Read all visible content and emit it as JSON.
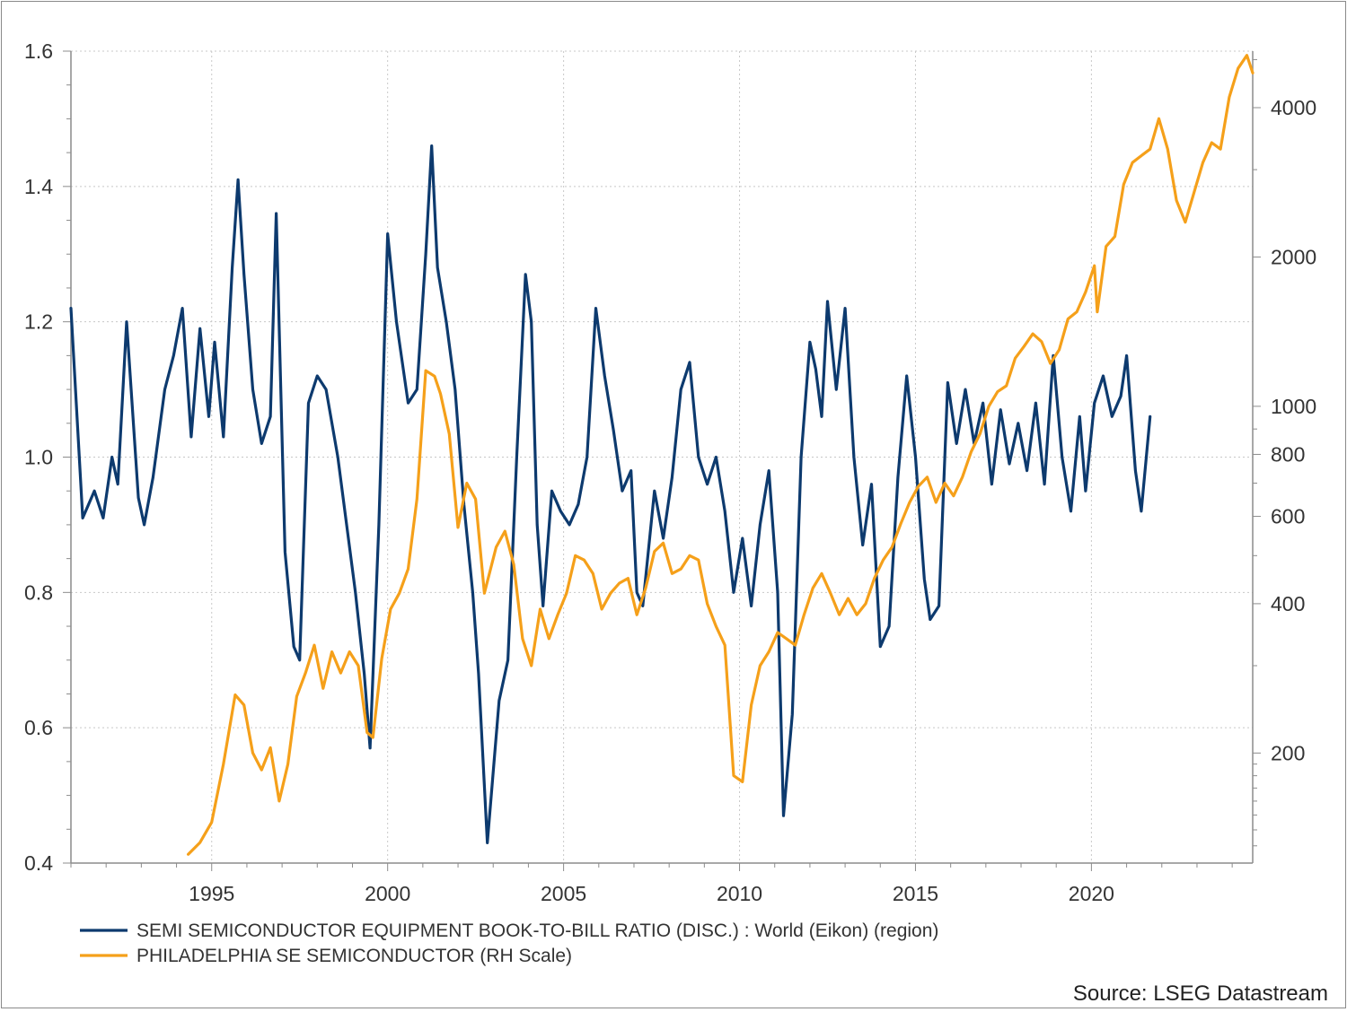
{
  "chart_data": {
    "type": "line",
    "x_axis": {
      "type": "date",
      "xlim": [
        "1991-01",
        "2024-08"
      ],
      "ticks": [
        1995,
        2000,
        2005,
        2010,
        2015,
        2020
      ],
      "tick_labels": [
        "1995",
        "2000",
        "2005",
        "2010",
        "2015",
        "2020"
      ]
    },
    "y_left": {
      "ylim": [
        0.4,
        1.6
      ],
      "ticks": [
        0.4,
        0.6,
        0.8,
        1.0,
        1.2,
        1.4,
        1.6
      ],
      "tick_labels": [
        "0.4",
        "0.6",
        "0.8",
        "1.0",
        "1.2",
        "1.4",
        "1.6"
      ]
    },
    "y_right": {
      "scale": "log",
      "ylim": [
        120,
        5200
      ],
      "ticks": [
        200,
        400,
        600,
        800,
        1000,
        2000,
        4000
      ],
      "tick_labels": [
        "200",
        "400",
        "600",
        "800",
        "1000",
        "2000",
        "4000"
      ]
    },
    "grid": true,
    "legend_position": "bottom-left",
    "source": "Source: LSEG Datastream",
    "series": [
      {
        "name": "SEMI SEMICONDUCTOR EQUIPMENT BOOK-TO-BILL RATIO (DISC.) : World (Eikon) (region)",
        "axis": "left",
        "color": "#0d3a6e",
        "points": [
          [
            "1991-01",
            1.22
          ],
          [
            "1991-05",
            0.91
          ],
          [
            "1991-09",
            0.95
          ],
          [
            "1991-12",
            0.91
          ],
          [
            "1992-03",
            1.0
          ],
          [
            "1992-05",
            0.96
          ],
          [
            "1992-08",
            1.2
          ],
          [
            "1992-12",
            0.94
          ],
          [
            "1993-02",
            0.9
          ],
          [
            "1993-05",
            0.97
          ],
          [
            "1993-09",
            1.1
          ],
          [
            "1993-12",
            1.15
          ],
          [
            "1994-03",
            1.22
          ],
          [
            "1994-06",
            1.03
          ],
          [
            "1994-09",
            1.19
          ],
          [
            "1994-12",
            1.06
          ],
          [
            "1995-02",
            1.17
          ],
          [
            "1995-05",
            1.03
          ],
          [
            "1995-08",
            1.28
          ],
          [
            "1995-10",
            1.41
          ],
          [
            "1995-12",
            1.27
          ],
          [
            "1996-03",
            1.1
          ],
          [
            "1996-06",
            1.02
          ],
          [
            "1996-09",
            1.06
          ],
          [
            "1996-11",
            1.36
          ],
          [
            "1997-02",
            0.86
          ],
          [
            "1997-05",
            0.72
          ],
          [
            "1997-07",
            0.7
          ],
          [
            "1997-10",
            1.08
          ],
          [
            "1998-01",
            1.12
          ],
          [
            "1998-04",
            1.1
          ],
          [
            "1998-08",
            1.0
          ],
          [
            "1998-11",
            0.9
          ],
          [
            "1999-02",
            0.8
          ],
          [
            "1999-05",
            0.68
          ],
          [
            "1999-07",
            0.57
          ],
          [
            "1999-10",
            0.9
          ],
          [
            "2000-01",
            1.33
          ],
          [
            "2000-04",
            1.2
          ],
          [
            "2000-08",
            1.08
          ],
          [
            "2000-11",
            1.1
          ],
          [
            "2001-02",
            1.3
          ],
          [
            "2001-04",
            1.46
          ],
          [
            "2001-06",
            1.28
          ],
          [
            "2001-09",
            1.2
          ],
          [
            "2001-12",
            1.1
          ],
          [
            "2002-03",
            0.93
          ],
          [
            "2002-06",
            0.8
          ],
          [
            "2002-08",
            0.68
          ],
          [
            "2002-11",
            0.43
          ],
          [
            "2003-03",
            0.64
          ],
          [
            "2003-06",
            0.7
          ],
          [
            "2003-09",
            1.0
          ],
          [
            "2003-12",
            1.27
          ],
          [
            "2004-02",
            1.2
          ],
          [
            "2004-04",
            0.9
          ],
          [
            "2004-06",
            0.78
          ],
          [
            "2004-09",
            0.95
          ],
          [
            "2004-12",
            0.92
          ],
          [
            "2005-03",
            0.9
          ],
          [
            "2005-06",
            0.93
          ],
          [
            "2005-09",
            1.0
          ],
          [
            "2005-12",
            1.22
          ],
          [
            "2006-03",
            1.12
          ],
          [
            "2006-06",
            1.04
          ],
          [
            "2006-09",
            0.95
          ],
          [
            "2006-12",
            0.98
          ],
          [
            "2007-02",
            0.8
          ],
          [
            "2007-04",
            0.78
          ],
          [
            "2007-08",
            0.95
          ],
          [
            "2007-11",
            0.88
          ],
          [
            "2008-02",
            0.97
          ],
          [
            "2008-05",
            1.1
          ],
          [
            "2008-08",
            1.14
          ],
          [
            "2008-11",
            1.0
          ],
          [
            "2009-02",
            0.96
          ],
          [
            "2009-05",
            1.0
          ],
          [
            "2009-08",
            0.92
          ],
          [
            "2009-11",
            0.8
          ],
          [
            "2010-02",
            0.88
          ],
          [
            "2010-05",
            0.78
          ],
          [
            "2010-08",
            0.9
          ],
          [
            "2010-11",
            0.98
          ],
          [
            "2011-02",
            0.8
          ],
          [
            "2011-04",
            0.47
          ],
          [
            "2011-07",
            0.62
          ],
          [
            "2011-10",
            1.0
          ],
          [
            "2012-01",
            1.17
          ],
          [
            "2012-03",
            1.13
          ],
          [
            "2012-05",
            1.06
          ],
          [
            "2012-07",
            1.23
          ],
          [
            "2012-10",
            1.1
          ],
          [
            "2013-01",
            1.22
          ],
          [
            "2013-04",
            1.0
          ],
          [
            "2013-07",
            0.87
          ],
          [
            "2013-10",
            0.96
          ],
          [
            "2014-01",
            0.72
          ],
          [
            "2014-04",
            0.75
          ],
          [
            "2014-07",
            0.97
          ],
          [
            "2014-10",
            1.12
          ],
          [
            "2015-01",
            1.0
          ],
          [
            "2015-04",
            0.82
          ],
          [
            "2015-06",
            0.76
          ],
          [
            "2015-09",
            0.78
          ],
          [
            "2015-12",
            1.11
          ],
          [
            "2016-03",
            1.02
          ],
          [
            "2016-06",
            1.1
          ],
          [
            "2016-09",
            1.02
          ],
          [
            "2016-12",
            1.08
          ],
          [
            "2017-03",
            0.96
          ],
          [
            "2017-06",
            1.07
          ],
          [
            "2017-09",
            0.99
          ],
          [
            "2017-12",
            1.05
          ],
          [
            "2018-03",
            0.98
          ],
          [
            "2018-06",
            1.08
          ],
          [
            "2018-09",
            0.96
          ],
          [
            "2018-12",
            1.15
          ],
          [
            "2019-03",
            1.0
          ],
          [
            "2019-06",
            0.92
          ],
          [
            "2019-09",
            1.06
          ],
          [
            "2019-11",
            0.95
          ],
          [
            "2020-02",
            1.08
          ],
          [
            "2020-05",
            1.12
          ],
          [
            "2020-08",
            1.06
          ],
          [
            "2020-11",
            1.09
          ],
          [
            "2021-01",
            1.15
          ],
          [
            "2021-04",
            0.98
          ],
          [
            "2021-06",
            0.92
          ],
          [
            "2021-09",
            1.06
          ]
        ]
      },
      {
        "name": "PHILADELPHIA SE SEMICONDUCTOR (RH Scale)",
        "axis": "right",
        "color": "#f5a01a",
        "points": [
          [
            "1994-05",
            125
          ],
          [
            "1994-09",
            132
          ],
          [
            "1995-01",
            145
          ],
          [
            "1995-05",
            190
          ],
          [
            "1995-09",
            262
          ],
          [
            "1995-12",
            250
          ],
          [
            "1996-03",
            200
          ],
          [
            "1996-06",
            185
          ],
          [
            "1996-09",
            205
          ],
          [
            "1996-12",
            160
          ],
          [
            "1997-03",
            190
          ],
          [
            "1997-06",
            260
          ],
          [
            "1997-09",
            290
          ],
          [
            "1997-12",
            330
          ],
          [
            "1998-03",
            270
          ],
          [
            "1998-06",
            320
          ],
          [
            "1998-09",
            290
          ],
          [
            "1998-12",
            320
          ],
          [
            "1999-03",
            300
          ],
          [
            "1999-06",
            220
          ],
          [
            "1999-08",
            215
          ],
          [
            "1999-11",
            310
          ],
          [
            "2000-02",
            390
          ],
          [
            "2000-05",
            420
          ],
          [
            "2000-08",
            470
          ],
          [
            "2000-11",
            650
          ],
          [
            "2001-02",
            1180
          ],
          [
            "2001-05",
            1150
          ],
          [
            "2001-07",
            1060
          ],
          [
            "2001-10",
            880
          ],
          [
            "2002-01",
            570
          ],
          [
            "2002-04",
            700
          ],
          [
            "2002-07",
            650
          ],
          [
            "2002-10",
            420
          ],
          [
            "2003-02",
            520
          ],
          [
            "2003-05",
            560
          ],
          [
            "2003-08",
            480
          ],
          [
            "2003-11",
            340
          ],
          [
            "2004-02",
            300
          ],
          [
            "2004-05",
            390
          ],
          [
            "2004-08",
            340
          ],
          [
            "2004-11",
            380
          ],
          [
            "2005-02",
            420
          ],
          [
            "2005-05",
            500
          ],
          [
            "2005-08",
            490
          ],
          [
            "2005-11",
            460
          ],
          [
            "2006-02",
            390
          ],
          [
            "2006-05",
            420
          ],
          [
            "2006-08",
            440
          ],
          [
            "2006-11",
            450
          ],
          [
            "2007-02",
            380
          ],
          [
            "2007-05",
            430
          ],
          [
            "2007-08",
            510
          ],
          [
            "2007-11",
            530
          ],
          [
            "2008-02",
            460
          ],
          [
            "2008-05",
            470
          ],
          [
            "2008-08",
            500
          ],
          [
            "2008-11",
            490
          ],
          [
            "2009-02",
            400
          ],
          [
            "2009-05",
            360
          ],
          [
            "2009-08",
            330
          ],
          [
            "2009-11",
            180
          ],
          [
            "2010-02",
            175
          ],
          [
            "2010-05",
            250
          ],
          [
            "2010-08",
            300
          ],
          [
            "2010-11",
            320
          ],
          [
            "2011-02",
            350
          ],
          [
            "2011-05",
            340
          ],
          [
            "2011-08",
            330
          ],
          [
            "2011-11",
            380
          ],
          [
            "2012-02",
            430
          ],
          [
            "2012-05",
            460
          ],
          [
            "2012-08",
            420
          ],
          [
            "2012-11",
            380
          ],
          [
            "2013-02",
            410
          ],
          [
            "2013-05",
            380
          ],
          [
            "2013-08",
            400
          ],
          [
            "2013-11",
            450
          ],
          [
            "2014-02",
            490
          ],
          [
            "2014-05",
            520
          ],
          [
            "2014-08",
            580
          ],
          [
            "2014-11",
            640
          ],
          [
            "2015-02",
            690
          ],
          [
            "2015-05",
            720
          ],
          [
            "2015-08",
            640
          ],
          [
            "2015-11",
            700
          ],
          [
            "2016-02",
            660
          ],
          [
            "2016-05",
            720
          ],
          [
            "2016-08",
            810
          ],
          [
            "2016-11",
            880
          ],
          [
            "2017-02",
            1000
          ],
          [
            "2017-05",
            1070
          ],
          [
            "2017-08",
            1100
          ],
          [
            "2017-11",
            1250
          ],
          [
            "2018-02",
            1320
          ],
          [
            "2018-05",
            1400
          ],
          [
            "2018-08",
            1350
          ],
          [
            "2018-11",
            1220
          ],
          [
            "2019-02",
            1300
          ],
          [
            "2019-05",
            1500
          ],
          [
            "2019-08",
            1550
          ],
          [
            "2019-11",
            1700
          ],
          [
            "2020-02",
            1920
          ],
          [
            "2020-03",
            1550
          ],
          [
            "2020-06",
            2100
          ],
          [
            "2020-09",
            2200
          ],
          [
            "2020-12",
            2800
          ],
          [
            "2021-03",
            3100
          ],
          [
            "2021-06",
            3200
          ],
          [
            "2021-09",
            3300
          ],
          [
            "2021-12",
            3800
          ],
          [
            "2022-03",
            3300
          ],
          [
            "2022-06",
            2600
          ],
          [
            "2022-09",
            2350
          ],
          [
            "2022-12",
            2700
          ],
          [
            "2023-03",
            3100
          ],
          [
            "2023-06",
            3400
          ],
          [
            "2023-09",
            3300
          ],
          [
            "2023-12",
            4200
          ],
          [
            "2024-03",
            4800
          ],
          [
            "2024-06",
            5100
          ],
          [
            "2024-08",
            4700
          ]
        ]
      }
    ]
  }
}
